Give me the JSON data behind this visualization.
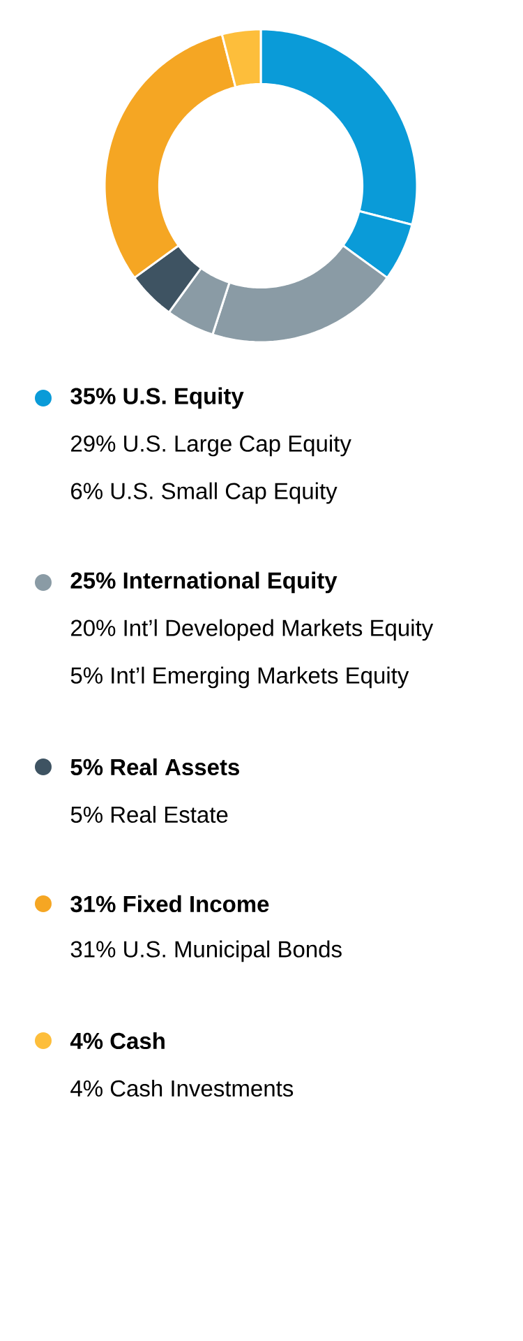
{
  "chart_data": {
    "type": "donut",
    "categories": [
      null,
      null,
      null,
      null,
      null,
      null,
      null
    ],
    "values": [
      29,
      6,
      20,
      5,
      5,
      31,
      4
    ],
    "colors": [
      "#0a9bd8",
      "#0a9bd8",
      "#8a9ba5",
      "#8a9ba5",
      "#3e5362",
      "#f5a623",
      "#fdbe3b"
    ],
    "annotations": [
      "35% U.S. Equity",
      "29% U.S. Large Cap Equity",
      "6% U.S. Small Cap Equity",
      "25% International Equity",
      "20% Int’l Developed Markets Equity",
      "5% Int’l Emerging Markets Equity",
      "5% Real Assets",
      "5% Real Estate",
      "31% Fixed Income",
      "31% U.S. Municipal Bonds",
      "4% Cash",
      "4% Cash Investments"
    ]
  }
}
